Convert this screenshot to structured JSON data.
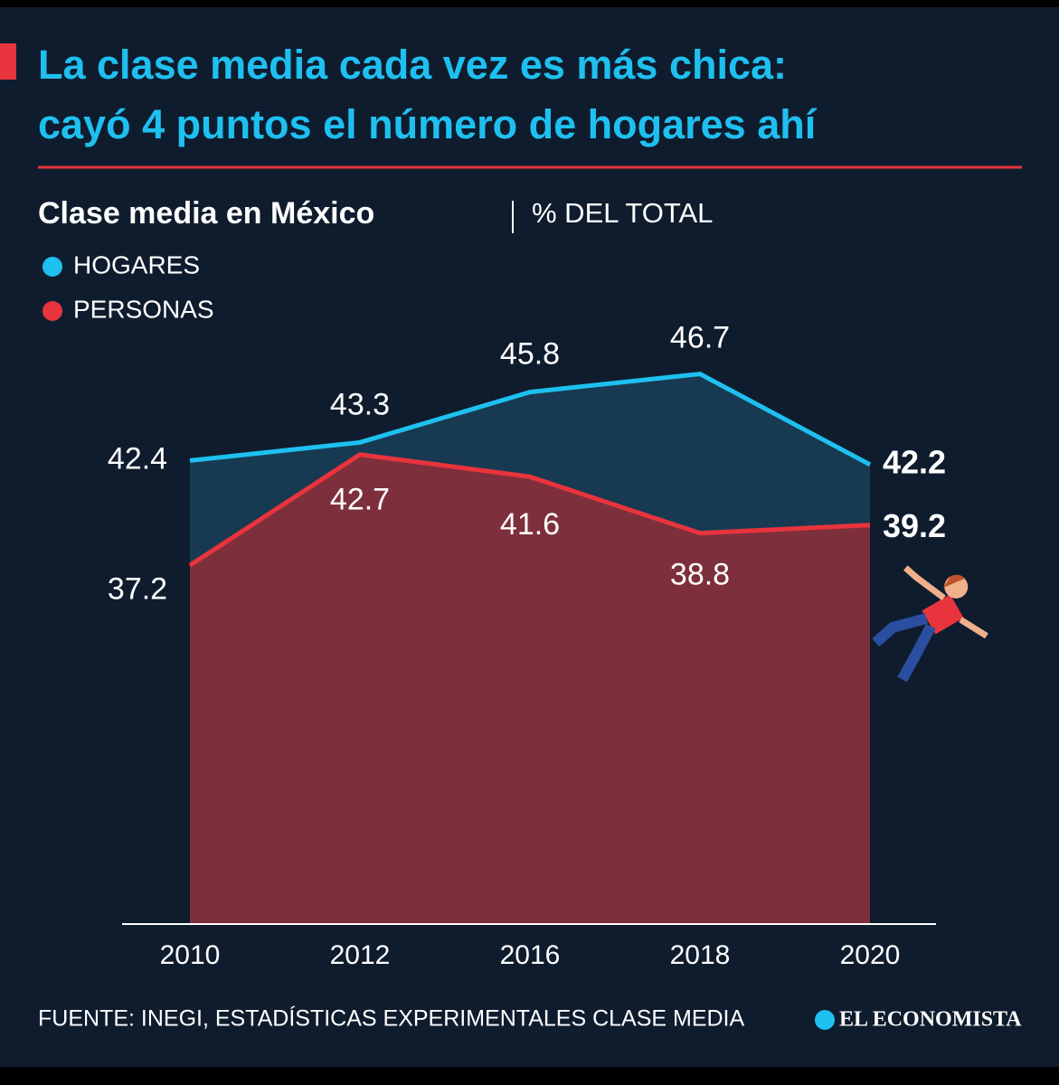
{
  "chart_data": {
    "type": "area",
    "title": "La clase media cada vez es más chica: cayó 4 puntos el número de hogares ahí",
    "subtitle": "Clase media en México",
    "unit": "% DEL TOTAL",
    "categories": [
      "2010",
      "2012",
      "2016",
      "2018",
      "2020"
    ],
    "series": [
      {
        "name": "HOGARES",
        "color": "#1ec0f0",
        "fill": "#173a52",
        "values": [
          42.4,
          43.3,
          45.8,
          46.7,
          42.2
        ]
      },
      {
        "name": "PERSONAS",
        "color": "#e8343c",
        "fill": "#7d2f3b",
        "values": [
          37.2,
          42.7,
          41.6,
          38.8,
          39.2
        ]
      }
    ],
    "ylim": [
      19.4,
      50
    ],
    "source": "FUENTE: INEGI, ESTADÍSTICAS EXPERIMENTALES CLASE MEDIA",
    "logo": "EL ECONOMISTA"
  }
}
